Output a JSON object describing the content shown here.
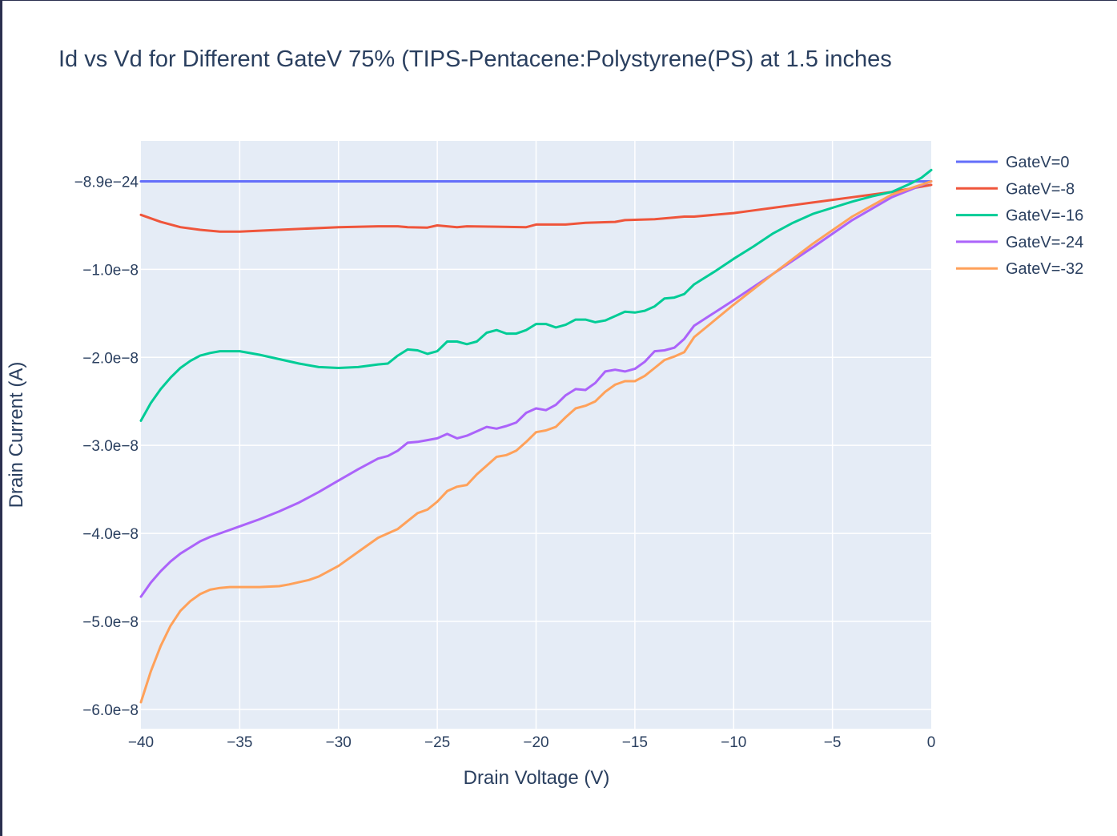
{
  "chart_data": {
    "type": "line",
    "title": "Id vs Vd for Different GateV 75% (TIPS-Pentacene:Polystyrene(PS) at 1.5 inches",
    "xlabel": "Drain Voltage (V)",
    "ylabel": "Drain Current (A)",
    "xlim": [
      -40,
      0
    ],
    "ylim": [
      -6.22e-08,
      4.6e-09
    ],
    "grid": true,
    "legend_position": "top-right",
    "x_ticks": [
      {
        "value": -40,
        "label": "−40"
      },
      {
        "value": -35,
        "label": "−35"
      },
      {
        "value": -30,
        "label": "−30"
      },
      {
        "value": -25,
        "label": "−25"
      },
      {
        "value": -20,
        "label": "−20"
      },
      {
        "value": -15,
        "label": "−15"
      },
      {
        "value": -10,
        "label": "−10"
      },
      {
        "value": -5,
        "label": "−5"
      },
      {
        "value": 0,
        "label": "0"
      }
    ],
    "y_ticks": [
      {
        "value": 0,
        "label": "−8.9e−24"
      },
      {
        "value": -1e-08,
        "label": "−1.0e−8"
      },
      {
        "value": -2e-08,
        "label": "−2.0e−8"
      },
      {
        "value": -3e-08,
        "label": "−3.0e−8"
      },
      {
        "value": -4e-08,
        "label": "−4.0e−8"
      },
      {
        "value": -5e-08,
        "label": "−5.0e−8"
      },
      {
        "value": -6e-08,
        "label": "−6.0e−8"
      }
    ],
    "series": [
      {
        "name": "GateV=0",
        "color": "#636efa",
        "x": [
          -40,
          -30,
          -20,
          -10,
          0
        ],
        "y": [
          0,
          0,
          0,
          0,
          0
        ]
      },
      {
        "name": "GateV=-8",
        "color": "#ef553b",
        "x": [
          -40,
          -39,
          -38,
          -37,
          -36,
          -35,
          -34,
          -32,
          -30,
          -28,
          -27,
          -26.5,
          -25.5,
          -25,
          -24,
          -23.5,
          -22,
          -20.5,
          -20,
          -18.5,
          -17.5,
          -16,
          -15.5,
          -14,
          -13,
          -12.5,
          -12,
          -10,
          -9,
          -8,
          -7,
          -6,
          -5,
          -4,
          -3,
          -2,
          -1,
          0
        ],
        "y": [
          -3.8e-09,
          -4.6e-09,
          -5.2e-09,
          -5.5e-09,
          -5.7e-09,
          -5.7e-09,
          -5.6e-09,
          -5.4e-09,
          -5.2e-09,
          -5.1e-09,
          -5.1e-09,
          -5.2e-09,
          -5.25e-09,
          -5e-09,
          -5.2e-09,
          -5.1e-09,
          -5.15e-09,
          -5.2e-09,
          -4.9e-09,
          -4.9e-09,
          -4.7e-09,
          -4.6e-09,
          -4.4e-09,
          -4.3e-09,
          -4.1e-09,
          -4e-09,
          -4e-09,
          -3.6e-09,
          -3.3e-09,
          -3e-09,
          -2.7e-09,
          -2.4e-09,
          -2.1e-09,
          -1.8e-09,
          -1.5e-09,
          -1.2e-09,
          -8e-10,
          -4e-10
        ]
      },
      {
        "name": "GateV=-16",
        "color": "#00cc96",
        "x": [
          -40,
          -39.5,
          -39,
          -38.5,
          -38,
          -37.5,
          -37,
          -36.5,
          -36,
          -35,
          -34,
          -33,
          -32,
          -31,
          -30,
          -29,
          -28,
          -27.5,
          -27,
          -26.5,
          -26,
          -25.5,
          -25,
          -24.5,
          -24,
          -23.5,
          -23,
          -22.5,
          -22,
          -21.5,
          -21,
          -20.5,
          -20,
          -19.5,
          -19,
          -18.5,
          -18,
          -17.5,
          -17,
          -16.5,
          -16,
          -15.5,
          -15,
          -14.5,
          -14,
          -13.5,
          -13,
          -12.5,
          -12,
          -11,
          -10,
          -9,
          -8,
          -7,
          -6,
          -5,
          -4,
          -3,
          -2,
          -1,
          -0.5,
          0
        ],
        "y": [
          -2.72e-08,
          -2.52e-08,
          -2.36e-08,
          -2.23e-08,
          -2.12e-08,
          -2.04e-08,
          -1.98e-08,
          -1.95e-08,
          -1.93e-08,
          -1.93e-08,
          -1.97e-08,
          -2.02e-08,
          -2.07e-08,
          -2.11e-08,
          -2.12e-08,
          -2.11e-08,
          -2.08e-08,
          -2.07e-08,
          -1.98e-08,
          -1.91e-08,
          -1.92e-08,
          -1.96e-08,
          -1.93e-08,
          -1.82e-08,
          -1.82e-08,
          -1.85e-08,
          -1.82e-08,
          -1.72e-08,
          -1.69e-08,
          -1.73e-08,
          -1.73e-08,
          -1.69e-08,
          -1.62e-08,
          -1.62e-08,
          -1.66e-08,
          -1.63e-08,
          -1.57e-08,
          -1.57e-08,
          -1.6e-08,
          -1.58e-08,
          -1.53e-08,
          -1.48e-08,
          -1.49e-08,
          -1.47e-08,
          -1.42e-08,
          -1.33e-08,
          -1.32e-08,
          -1.28e-08,
          -1.17e-08,
          -1.03e-08,
          -8.8e-09,
          -7.4e-09,
          -5.9e-09,
          -4.7e-09,
          -3.7e-09,
          -3e-09,
          -2.3e-09,
          -1.7e-09,
          -1.2e-09,
          -2e-10,
          4e-10,
          1.3e-09
        ]
      },
      {
        "name": "GateV=-24",
        "color": "#ab63fa",
        "x": [
          -40,
          -39.5,
          -39,
          -38.5,
          -38,
          -37.5,
          -37,
          -36.5,
          -36,
          -35,
          -34,
          -33,
          -32,
          -31,
          -30,
          -29,
          -28,
          -27.5,
          -27,
          -26.5,
          -26,
          -25.5,
          -25,
          -24.5,
          -24,
          -23.5,
          -23,
          -22.5,
          -22,
          -21.5,
          -21,
          -20.5,
          -20,
          -19.5,
          -19,
          -18.5,
          -18,
          -17.5,
          -17,
          -16.5,
          -16,
          -15.5,
          -15,
          -14.5,
          -14,
          -13.5,
          -13,
          -12.5,
          -12,
          -10,
          -8,
          -6,
          -4,
          -2,
          0
        ],
        "y": [
          -4.72e-08,
          -4.56e-08,
          -4.43e-08,
          -4.32e-08,
          -4.23e-08,
          -4.16e-08,
          -4.09e-08,
          -4.04e-08,
          -4e-08,
          -3.92e-08,
          -3.84e-08,
          -3.75e-08,
          -3.65e-08,
          -3.53e-08,
          -3.4e-08,
          -3.27e-08,
          -3.15e-08,
          -3.12e-08,
          -3.06e-08,
          -2.97e-08,
          -2.96e-08,
          -2.94e-08,
          -2.92e-08,
          -2.87e-08,
          -2.92e-08,
          -2.89e-08,
          -2.84e-08,
          -2.79e-08,
          -2.81e-08,
          -2.78e-08,
          -2.74e-08,
          -2.63e-08,
          -2.58e-08,
          -2.6e-08,
          -2.54e-08,
          -2.43e-08,
          -2.36e-08,
          -2.37e-08,
          -2.29e-08,
          -2.16e-08,
          -2.14e-08,
          -2.16e-08,
          -2.13e-08,
          -2.05e-08,
          -1.93e-08,
          -1.92e-08,
          -1.89e-08,
          -1.79e-08,
          -1.64e-08,
          -1.35e-08,
          -1.05e-08,
          -7.5e-09,
          -4.4e-09,
          -1.8e-09,
          0
        ]
      },
      {
        "name": "GateV=-32",
        "color": "#ffa15a",
        "x": [
          -40,
          -39.5,
          -39,
          -38.5,
          -38,
          -37.5,
          -37,
          -36.5,
          -36,
          -35.5,
          -35,
          -34,
          -33,
          -32.5,
          -31.5,
          -31,
          -30,
          -29,
          -28,
          -27.5,
          -27,
          -26.5,
          -26,
          -25.5,
          -25,
          -24.5,
          -24,
          -23.5,
          -23,
          -22.5,
          -22,
          -21.5,
          -21,
          -20.5,
          -20,
          -19.5,
          -19,
          -18.5,
          -18,
          -17.5,
          -17,
          -16.5,
          -16,
          -15.5,
          -15,
          -14.5,
          -14,
          -13.5,
          -13,
          -12.5,
          -12,
          -10,
          -8,
          -6,
          -4,
          -2,
          0
        ],
        "y": [
          -5.92e-08,
          -5.57e-08,
          -5.28e-08,
          -5.05e-08,
          -4.88e-08,
          -4.77e-08,
          -4.69e-08,
          -4.64e-08,
          -4.62e-08,
          -4.61e-08,
          -4.61e-08,
          -4.61e-08,
          -4.6e-08,
          -4.58e-08,
          -4.53e-08,
          -4.49e-08,
          -4.37e-08,
          -4.21e-08,
          -4.05e-08,
          -4e-08,
          -3.95e-08,
          -3.86e-08,
          -3.77e-08,
          -3.73e-08,
          -3.64e-08,
          -3.52e-08,
          -3.47e-08,
          -3.45e-08,
          -3.33e-08,
          -3.23e-08,
          -3.13e-08,
          -3.11e-08,
          -3.06e-08,
          -2.96e-08,
          -2.85e-08,
          -2.83e-08,
          -2.79e-08,
          -2.68e-08,
          -2.58e-08,
          -2.55e-08,
          -2.5e-08,
          -2.39e-08,
          -2.31e-08,
          -2.27e-08,
          -2.27e-08,
          -2.21e-08,
          -2.12e-08,
          -2.03e-08,
          -1.99e-08,
          -1.94e-08,
          -1.77e-08,
          -1.4e-08,
          -1.05e-08,
          -7.1e-09,
          -4e-09,
          -1.5e-09,
          0
        ]
      }
    ]
  }
}
